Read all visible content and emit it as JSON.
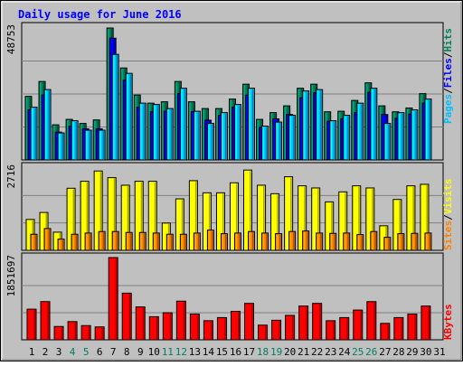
{
  "title": "Daily usage for June 2016",
  "colors": {
    "background": "#c0c0c0",
    "title": "#0000ff",
    "hits": "#00805c",
    "files": "#0000ff",
    "pages": "#00c0ff",
    "visits": "#ffff00",
    "sites": "#ff8000",
    "kbytes": "#ff0000",
    "weekend_label": "#00805c",
    "weekday_label": "#000000"
  },
  "top_panel": {
    "max_label": "48753",
    "right_labels": {
      "pages": "Pages",
      "sep1": "/",
      "files": "Files",
      "sep2": "/",
      "hits": "Hits"
    }
  },
  "middle_panel": {
    "max_label": "2716",
    "right_labels": {
      "sites": "Sites",
      "sep": "/",
      "visits": "Visits"
    }
  },
  "bottom_panel": {
    "max_label": "1851697",
    "right_labels": {
      "kbytes": "KBytes"
    }
  },
  "chart_data": {
    "type": "bar",
    "title": "Daily usage for June 2016",
    "categories": [
      "1",
      "2",
      "3",
      "4",
      "5",
      "6",
      "7",
      "8",
      "9",
      "10",
      "11",
      "12",
      "13",
      "14",
      "15",
      "16",
      "17",
      "18",
      "19",
      "20",
      "21",
      "22",
      "23",
      "24",
      "25",
      "26",
      "27",
      "28",
      "29",
      "30",
      "31"
    ],
    "weekend_days": [
      "4",
      "5",
      "11",
      "12",
      "18",
      "19",
      "25",
      "26"
    ],
    "panels": [
      {
        "name": "hits-files-pages",
        "ymax": 48753,
        "series": [
          {
            "name": "Hits",
            "values": [
              23500,
              29000,
              13000,
              15000,
              13500,
              14800,
              48753,
              34000,
              24000,
              21000,
              21500,
              29000,
              21500,
              19000,
              19000,
              22500,
              28000,
              15000,
              17500,
              20000,
              26500,
              28000,
              17800,
              18000,
              22000,
              28500,
              20000,
              17800,
              19200,
              24500,
              null
            ]
          },
          {
            "name": "Files",
            "values": [
              18500,
              24000,
              10300,
              12500,
              11500,
              11500,
              45000,
              29500,
              19500,
              17800,
              18000,
              24500,
              17800,
              14700,
              16500,
              19500,
              24000,
              12000,
              15200,
              16800,
              23000,
              24800,
              14300,
              15200,
              17500,
              25000,
              16800,
              15400,
              17000,
              21000,
              null
            ]
          },
          {
            "name": "Pages",
            "values": [
              19500,
              26000,
              10000,
              14500,
              11000,
              11000,
              39000,
              32000,
              21000,
              20500,
              19000,
              26500,
              18000,
              13500,
              17500,
              20500,
              26500,
              12500,
              14000,
              16500,
              25500,
              26000,
              14500,
              16500,
              21000,
              26500,
              13500,
              17500,
              18500,
              22500,
              null
            ]
          }
        ]
      },
      {
        "name": "visits-sites",
        "ymax": 2716,
        "series": [
          {
            "name": "Visits",
            "values": [
              1020,
              1250,
              600,
              2050,
              2280,
              2620,
              2400,
              2150,
              2280,
              2280,
              900,
              1700,
              2300,
              1900,
              1900,
              2230,
              2650,
              2150,
              1870,
              2430,
              2130,
              2060,
              1600,
              1930,
              2130,
              2060,
              810,
              1680,
              2130,
              2180,
              null
            ]
          },
          {
            "name": "Sites",
            "values": [
              530,
              720,
              370,
              530,
              570,
              620,
              620,
              590,
              590,
              570,
              530,
              530,
              570,
              670,
              550,
              570,
              620,
              570,
              550,
              620,
              640,
              570,
              560,
              570,
              520,
              620,
              430,
              550,
              560,
              570,
              null
            ]
          }
        ]
      },
      {
        "name": "kbytes",
        "ymax": 1851697,
        "series": [
          {
            "name": "KBytes",
            "values": [
              690000,
              860000,
              300000,
              410000,
              320000,
              290000,
              1851697,
              1050000,
              740000,
              520000,
              610000,
              870000,
              580000,
              430000,
              500000,
              640000,
              820000,
              330000,
              440000,
              550000,
              760000,
              820000,
              430000,
              500000,
              670000,
              860000,
              370000,
              500000,
              580000,
              760000,
              null
            ]
          }
        ]
      }
    ]
  }
}
